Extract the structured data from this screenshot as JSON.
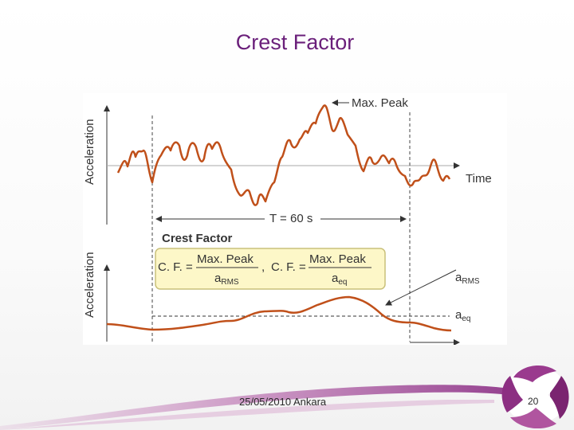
{
  "slide": {
    "title": "Crest Factor",
    "footer_date": "25/05/2010 Ankara",
    "page_number": "20"
  },
  "diagram": {
    "top_ylabel": "Acceleration",
    "bottom_ylabel": "Acceleration",
    "time_label": "Time",
    "max_peak_label": "Max. Peak",
    "duration_label": "T = 60 s",
    "section_title": "Crest Factor",
    "formula1_lhs": "C. F. =",
    "formula1_num": "Max. Peak",
    "formula1_den_main": "a",
    "formula1_den_sub": "RMS",
    "formula_sep": ",",
    "formula2_lhs": "C. F. =",
    "formula2_num": "Max. Peak",
    "formula2_den_main": "a",
    "formula2_den_sub": "eq",
    "arms_label_main": "a",
    "arms_label_sub": "RMS",
    "aeq_label_main": "a",
    "aeq_label_sub": "eq"
  },
  "colors": {
    "title": "#6a1f7a",
    "signal": "#c0501a",
    "formula_box_fill": "#fdf7c8",
    "formula_box_stroke": "#c9c07a",
    "axis": "#333333"
  }
}
